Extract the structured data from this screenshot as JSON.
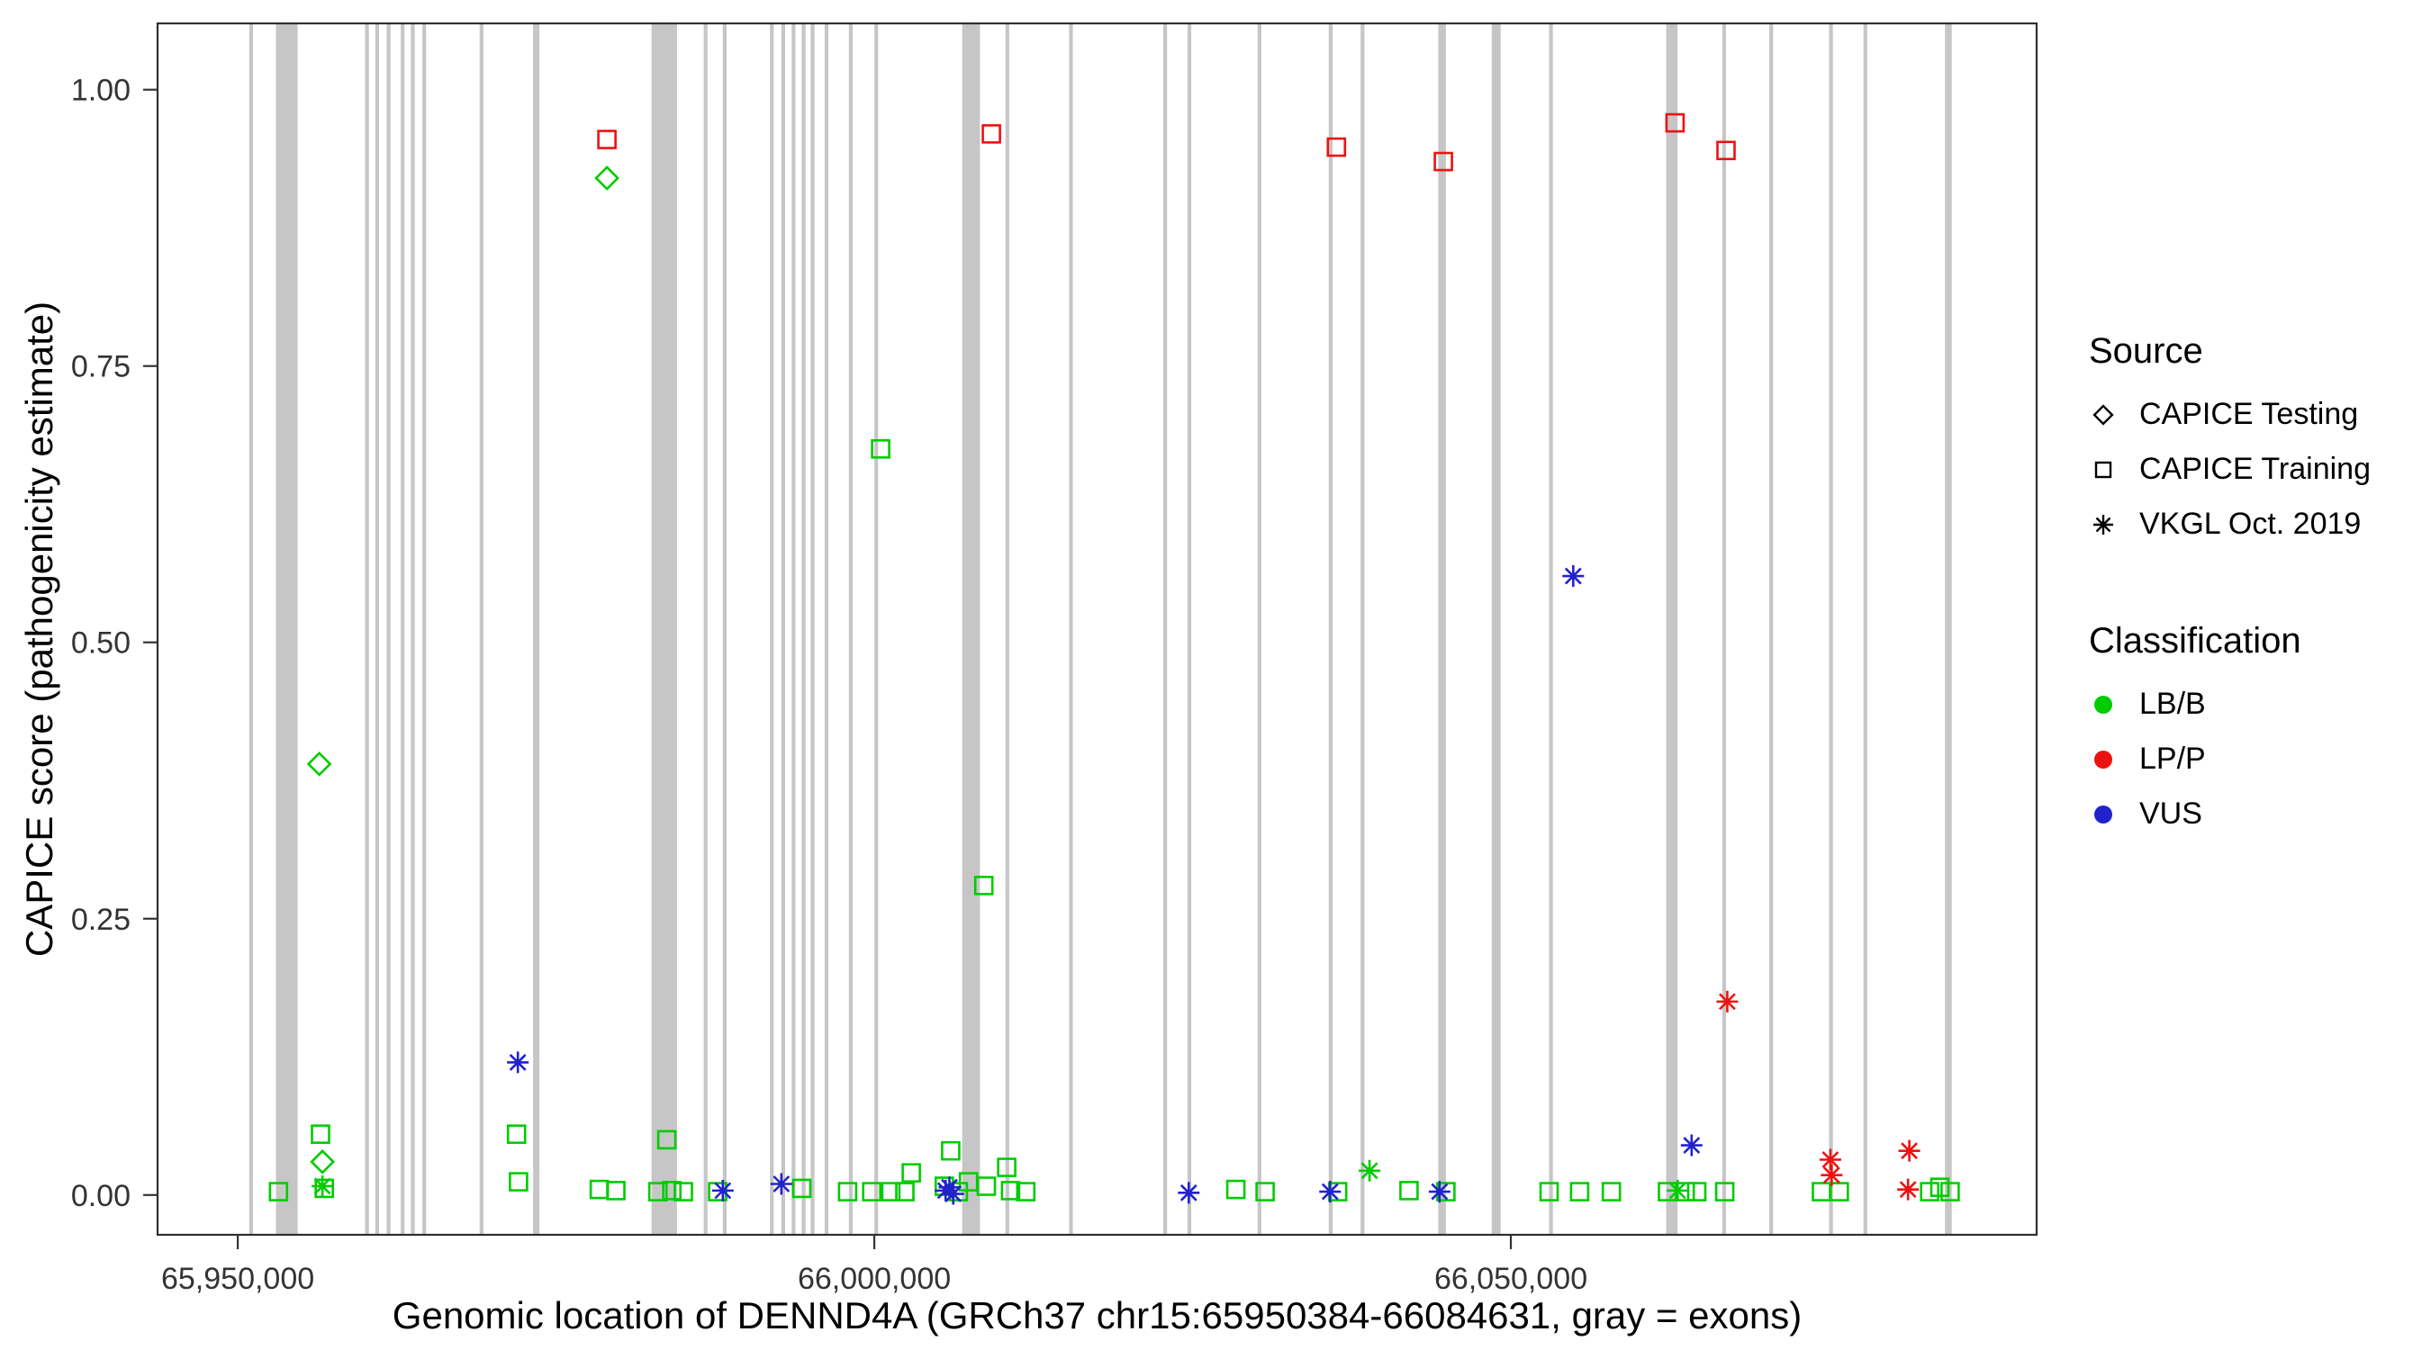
{
  "figure": {
    "background": "#ffffff",
    "panel_border_color": "#2f2f2f",
    "tick_color": "#333333"
  },
  "legend": {
    "source": {
      "title": "Source",
      "items": [
        {
          "label": "CAPICE Testing",
          "marker": "diamond"
        },
        {
          "label": "CAPICE Training",
          "marker": "square"
        },
        {
          "label": "VKGL Oct. 2019",
          "marker": "asterisk"
        }
      ]
    },
    "classification": {
      "title": "Classification",
      "items": [
        {
          "label": "LB/B",
          "color": "#00CC00"
        },
        {
          "label": "LP/P",
          "color": "#EE1111"
        },
        {
          "label": "VUS",
          "color": "#2222CC"
        }
      ]
    }
  },
  "chart_data": {
    "type": "scatter",
    "title": "",
    "xlabel": "Genomic location of DENND4A (GRCh37 chr15:65950384-66084631, gray = exons)",
    "ylabel": "CAPICE score (pathogenicity estimate)",
    "x_domain": [
      65943700,
      66091300
    ],
    "y_domain": [
      -0.036,
      1.06
    ],
    "legend_position": "right",
    "grid": false,
    "exon_color": "#c6c6c6",
    "x_ticks": [
      {
        "value": 65950000,
        "label": "65,950,000"
      },
      {
        "value": 66000000,
        "label": "66,000,000"
      },
      {
        "value": 66050000,
        "label": "66,050,000"
      }
    ],
    "y_ticks": [
      {
        "value": 0.0,
        "label": "0.00"
      },
      {
        "value": 0.25,
        "label": "0.25"
      },
      {
        "value": 0.5,
        "label": "0.50"
      },
      {
        "value": 0.75,
        "label": "0.75"
      },
      {
        "value": 1.0,
        "label": "1.00"
      }
    ],
    "exons": [
      [
        65950900,
        65951200
      ],
      [
        65953000,
        65954700
      ],
      [
        65960000,
        65960300
      ],
      [
        65960800,
        65961100
      ],
      [
        65961700,
        65962000
      ],
      [
        65962800,
        65963100
      ],
      [
        65963600,
        65963900
      ],
      [
        65964500,
        65964800
      ],
      [
        65969000,
        65969300
      ],
      [
        65973200,
        65973700
      ],
      [
        65982500,
        65984500
      ],
      [
        65986600,
        65986900
      ],
      [
        65988100,
        65988400
      ],
      [
        65991800,
        65992100
      ],
      [
        65992700,
        65993000
      ],
      [
        65993500,
        65993800
      ],
      [
        65994300,
        65994600
      ],
      [
        65995000,
        65995300
      ],
      [
        65996100,
        65996400
      ],
      [
        65998000,
        65998300
      ],
      [
        66000000,
        66000300
      ],
      [
        66006900,
        66008300
      ],
      [
        66010300,
        66010600
      ],
      [
        66015300,
        66015600
      ],
      [
        66022700,
        66023000
      ],
      [
        66024600,
        66024900
      ],
      [
        66030100,
        66030400
      ],
      [
        66035700,
        66036000
      ],
      [
        66038200,
        66038500
      ],
      [
        66044300,
        66044900
      ],
      [
        66048500,
        66049200
      ],
      [
        66053000,
        66053300
      ],
      [
        66062200,
        66063100
      ],
      [
        66066600,
        66066900
      ],
      [
        66070300,
        66070600
      ],
      [
        66075000,
        66075300
      ],
      [
        66077700,
        66078000
      ],
      [
        66084100,
        66084631
      ]
    ],
    "series": [
      {
        "name": "CAPICE Testing / LB/B",
        "source": "CAPICE Testing",
        "classification": "LB/B",
        "marker": "diamond",
        "color": "#00CC00",
        "points": [
          [
            65956400,
            0.39
          ],
          [
            65956650,
            0.03
          ],
          [
            65979000,
            0.92
          ]
        ]
      },
      {
        "name": "CAPICE Training / LB/B",
        "source": "CAPICE Training",
        "classification": "LB/B",
        "marker": "square",
        "color": "#00CC00",
        "points": [
          [
            65953200,
            0.003
          ],
          [
            65956500,
            0.055
          ],
          [
            65956800,
            0.006
          ],
          [
            65971900,
            0.055
          ],
          [
            65972050,
            0.012
          ],
          [
            65978400,
            0.005
          ],
          [
            65979700,
            0.004
          ],
          [
            65983000,
            0.003
          ],
          [
            65983700,
            0.05
          ],
          [
            65984100,
            0.004
          ],
          [
            65985000,
            0.003
          ],
          [
            65987700,
            0.003
          ],
          [
            65994300,
            0.006
          ],
          [
            65997900,
            0.003
          ],
          [
            65999800,
            0.003
          ],
          [
            66000500,
            0.675
          ],
          [
            66001300,
            0.003
          ],
          [
            66002400,
            0.003
          ],
          [
            66002900,
            0.02
          ],
          [
            66005500,
            0.008
          ],
          [
            66006000,
            0.04
          ],
          [
            66006600,
            0.003
          ],
          [
            66007400,
            0.012
          ],
          [
            66008600,
            0.28
          ],
          [
            66008800,
            0.008
          ],
          [
            66010400,
            0.025
          ],
          [
            66010700,
            0.004
          ],
          [
            66011900,
            0.003
          ],
          [
            66028400,
            0.005
          ],
          [
            66030700,
            0.003
          ],
          [
            66036400,
            0.003
          ],
          [
            66042000,
            0.004
          ],
          [
            66044900,
            0.003
          ],
          [
            66053000,
            0.003
          ],
          [
            66055400,
            0.003
          ],
          [
            66057900,
            0.003
          ],
          [
            66062300,
            0.003
          ],
          [
            66063700,
            0.003
          ],
          [
            66064600,
            0.003
          ],
          [
            66066800,
            0.003
          ],
          [
            66074400,
            0.003
          ],
          [
            66075800,
            0.003
          ],
          [
            66082900,
            0.003
          ],
          [
            66083700,
            0.007
          ],
          [
            66084500,
            0.003
          ]
        ]
      },
      {
        "name": "CAPICE Training / LP/P",
        "source": "CAPICE Training",
        "classification": "LP/P",
        "marker": "square",
        "color": "#EE1111",
        "points": [
          [
            65979000,
            0.955
          ],
          [
            66009200,
            0.96
          ],
          [
            66036300,
            0.948
          ],
          [
            66044700,
            0.935
          ],
          [
            66062900,
            0.97
          ],
          [
            66066900,
            0.945
          ]
        ]
      },
      {
        "name": "VKGL Oct. 2019 / LB/B",
        "source": "VKGL Oct. 2019",
        "classification": "LB/B",
        "marker": "asterisk",
        "color": "#00CC00",
        "points": [
          [
            65956650,
            0.008
          ],
          [
            66038900,
            0.022
          ],
          [
            66063100,
            0.004
          ]
        ]
      },
      {
        "name": "VKGL Oct. 2019 / LP/P",
        "source": "VKGL Oct. 2019",
        "classification": "LP/P",
        "marker": "asterisk",
        "color": "#EE1111",
        "points": [
          [
            66067000,
            0.175
          ],
          [
            66075100,
            0.032
          ],
          [
            66075200,
            0.018
          ],
          [
            66081300,
            0.04
          ],
          [
            66081200,
            0.005
          ]
        ]
      },
      {
        "name": "VKGL Oct. 2019 / VUS",
        "source": "VKGL Oct. 2019",
        "classification": "VUS",
        "marker": "asterisk",
        "color": "#2222CC",
        "points": [
          [
            65972000,
            0.12
          ],
          [
            65988100,
            0.004
          ],
          [
            65992700,
            0.01
          ],
          [
            66005600,
            0.004
          ],
          [
            66005900,
            0.007
          ],
          [
            66006200,
            0.001
          ],
          [
            66024700,
            0.002
          ],
          [
            66035800,
            0.003
          ],
          [
            66044400,
            0.003
          ],
          [
            66054900,
            0.56
          ],
          [
            66064200,
            0.045
          ]
        ]
      }
    ]
  }
}
